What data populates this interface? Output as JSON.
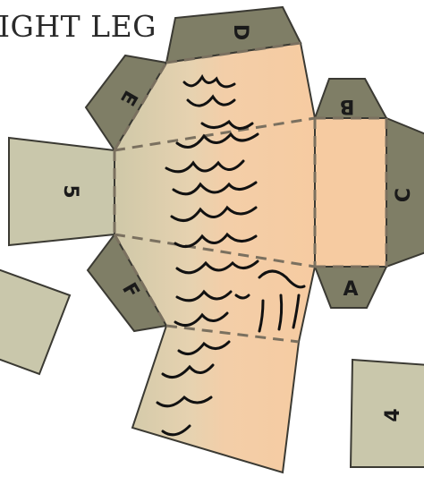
{
  "title": "IGHT LEG",
  "panel_labels": {
    "a": "A",
    "b": "B",
    "c": "C",
    "d": "D",
    "e": "E",
    "f": "F",
    "p4": "4",
    "p5": "5"
  },
  "colors": {
    "tab_dark": "#7f7e66",
    "tan_light": "#c8c5aa",
    "skin": "#f2cba5",
    "skin_edge": "#d7b08c",
    "outline": "#3b3a33",
    "fold_line": "#7a705f",
    "hair": "#111111"
  }
}
